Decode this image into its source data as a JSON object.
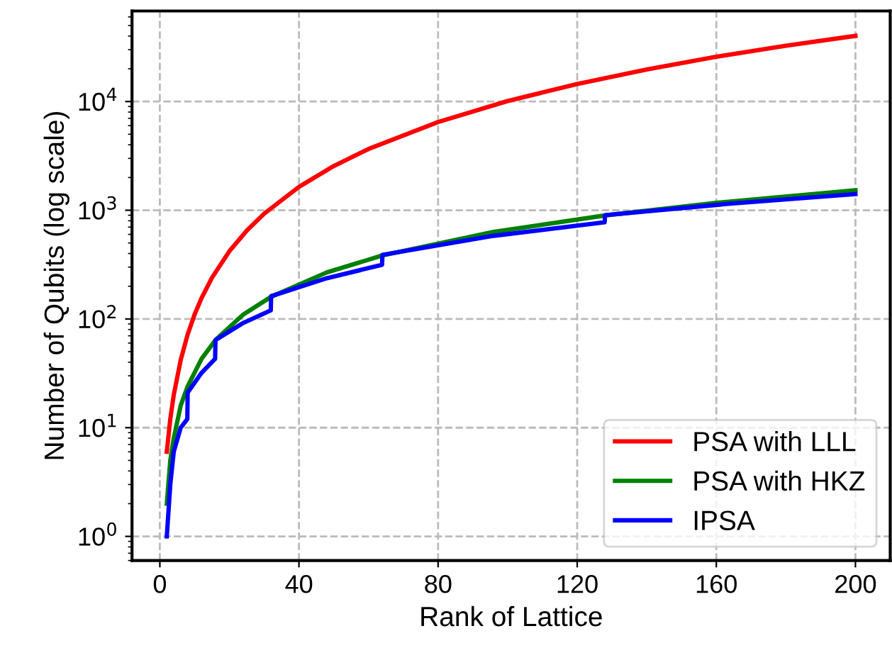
{
  "chart_data": {
    "type": "line",
    "xlabel": "Rank of Lattice",
    "ylabel": "Number of Qubits (log scale)",
    "log": "y",
    "xlim": [
      -8,
      210
    ],
    "xticks": [
      0,
      40,
      80,
      120,
      160,
      200
    ],
    "ylim": [
      0.6,
      68000
    ],
    "yticks": [
      {
        "value": 1,
        "label": "10$^{0}$"
      },
      {
        "value": 10,
        "label": "10$^{1}$"
      },
      {
        "value": 100,
        "label": "10$^{2}$"
      },
      {
        "value": 1000,
        "label": "10$^{3}$"
      },
      {
        "value": 10000,
        "label": "10$^{4}$"
      }
    ],
    "grid": true,
    "legend": "bottom right",
    "line_style": "solid",
    "marker": "none",
    "series": [
      {
        "name": "PSA with LLL",
        "color": "#ff0000",
        "x": [
          2,
          3,
          4,
          6,
          8,
          10,
          12,
          15,
          20,
          25,
          30,
          40,
          50,
          60,
          80,
          100,
          120,
          140,
          160,
          180,
          200
        ],
        "values": [
          6,
          12,
          20,
          42,
          72,
          110,
          156,
          240,
          420,
          650,
          930,
          1640,
          2550,
          3660,
          6480,
          10100,
          14500,
          19700,
          25800,
          32600,
          40200
        ]
      },
      {
        "name": "PSA with HKZ",
        "color": "#008000",
        "x": [
          2,
          3,
          4,
          6,
          8,
          12,
          16,
          24,
          32,
          48,
          64,
          96,
          128,
          160,
          200
        ],
        "values": [
          2,
          5,
          8,
          16,
          24,
          43,
          64,
          110,
          160,
          268,
          384,
          632,
          896,
          1170,
          1530
        ]
      },
      {
        "name": "IPSA",
        "color": "#0000ff",
        "x": [
          2,
          3,
          4,
          6,
          7.9,
          8,
          12,
          15.9,
          16,
          24,
          31.9,
          32,
          48,
          63.9,
          64,
          96,
          127.9,
          128,
          164,
          200
        ],
        "values": [
          1,
          3,
          6,
          10,
          12,
          21,
          32,
          43,
          64,
          92,
          120,
          162,
          237,
          315,
          388,
          582,
          776,
          900,
          1150,
          1410
        ]
      }
    ]
  }
}
